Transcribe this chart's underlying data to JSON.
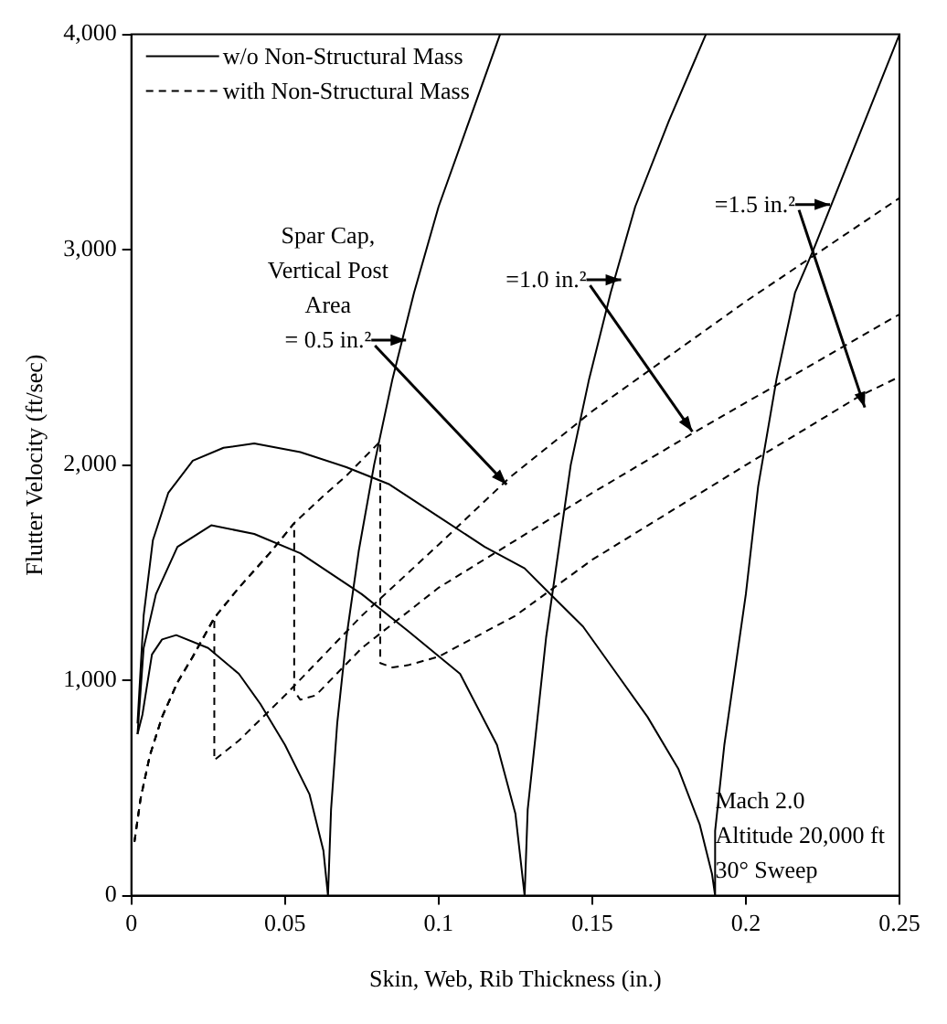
{
  "chart_data": {
    "type": "line",
    "xlabel": "Skin, Web, Rib Thickness (in.)",
    "ylabel": "Flutter Velocity (ft/sec)",
    "xlim": [
      0,
      0.25
    ],
    "xticks": [
      0,
      0.05,
      0.1,
      0.15,
      0.2,
      0.25
    ],
    "ylim": [
      0,
      4000
    ],
    "yticks": [
      0,
      {
        "value": 1000,
        "label": "1,000"
      },
      {
        "value": 2000,
        "label": "2,000"
      },
      {
        "value": 3000,
        "label": "3,000"
      },
      {
        "value": 4000,
        "label": "4,000"
      }
    ],
    "legend": "top left",
    "marker": "none",
    "series": [
      {
        "name": "w/o Non-Structural Mass",
        "color": "#000000",
        "line_style": "solid",
        "x": [
          0.002,
          0.0036,
          0.0067,
          0.01,
          0.0146,
          0.025,
          0.035,
          0.042,
          0.05,
          0.058,
          0.0625,
          0.064,
          0.065,
          0.067,
          0.07,
          0.074,
          0.079,
          0.085,
          0.092,
          0.1,
          0.11,
          0.12
        ],
        "values": [
          750,
          840,
          1120,
          1190,
          1210,
          1150,
          1030,
          890,
          700,
          470,
          210,
          0,
          400,
          800,
          1200,
          1600,
          2000,
          2400,
          2800,
          3200,
          3600,
          4000
        ]
      },
      {
        "color": "#000000",
        "line_style": "solid",
        "x": [
          0.002,
          0.004,
          0.008,
          0.015,
          0.026,
          0.04,
          0.055,
          0.075,
          0.09,
          0.107,
          0.119,
          0.125,
          0.128,
          0.129,
          0.132,
          0.135,
          0.139,
          0.143,
          0.149,
          0.156,
          0.164,
          0.175,
          0.187
        ],
        "values": [
          750,
          1150,
          1400,
          1620,
          1720,
          1680,
          1590,
          1400,
          1230,
          1030,
          700,
          380,
          0,
          400,
          800,
          1200,
          1600,
          2000,
          2400,
          2800,
          3200,
          3600,
          4000
        ]
      },
      {
        "color": "#000000",
        "line_style": "solid",
        "x": [
          0.002,
          0.004,
          0.007,
          0.012,
          0.02,
          0.03,
          0.04,
          0.055,
          0.07,
          0.084,
          0.1,
          0.115,
          0.128,
          0.135,
          0.147,
          0.158,
          0.168,
          0.178,
          0.185,
          0.189,
          0.19,
          0.19,
          0.193,
          0.196,
          0.2,
          0.204,
          0.21,
          0.216,
          0.222,
          0.236,
          0.25
        ],
        "values": [
          800,
          1300,
          1650,
          1870,
          2020,
          2080,
          2100,
          2060,
          1990,
          1910,
          1760,
          1620,
          1520,
          1420,
          1250,
          1030,
          830,
          590,
          330,
          100,
          0,
          300,
          700,
          1000,
          1400,
          1900,
          2400,
          2800,
          3000,
          3500,
          4000
        ]
      },
      {
        "name": "with Non-Structural Mass",
        "color": "#000000",
        "line_style": "dashed",
        "x": [
          0.001,
          0.003,
          0.006,
          0.01,
          0.015,
          0.02,
          0.027,
          0.027,
          0.035,
          0.05,
          0.075,
          0.1,
          0.123,
          0.15,
          0.2,
          0.25
        ],
        "values": [
          250,
          450,
          650,
          830,
          990,
          1110,
          1290,
          630,
          720,
          930,
          1300,
          1630,
          1940,
          2250,
          2760,
          3240
        ]
      },
      {
        "color": "#000000",
        "line_style": "dashed",
        "x": [
          0.001,
          0.003,
          0.006,
          0.01,
          0.015,
          0.02,
          0.027,
          0.035,
          0.045,
          0.053,
          0.053,
          0.055,
          0.06,
          0.075,
          0.1,
          0.125,
          0.15,
          0.183,
          0.25
        ],
        "values": [
          250,
          450,
          650,
          830,
          990,
          1110,
          1290,
          1430,
          1590,
          1730,
          950,
          910,
          930,
          1150,
          1430,
          1650,
          1870,
          2150,
          2700
        ]
      },
      {
        "color": "#000000",
        "line_style": "dashed",
        "x": [
          0.001,
          0.003,
          0.006,
          0.01,
          0.015,
          0.02,
          0.027,
          0.035,
          0.045,
          0.053,
          0.062,
          0.07,
          0.081,
          0.081,
          0.085,
          0.09,
          0.1,
          0.125,
          0.15,
          0.2,
          0.237,
          0.25
        ],
        "values": [
          250,
          450,
          650,
          830,
          990,
          1110,
          1290,
          1430,
          1590,
          1730,
          1850,
          1950,
          2110,
          1080,
          1060,
          1070,
          1110,
          1300,
          1560,
          2000,
          2320,
          2410
        ]
      }
    ],
    "annotations": [
      {
        "text": "Spar Cap,\nVertical Post\nArea\n= 0.5 in.²",
        "x": 0.09,
        "y": 2580
      },
      {
        "text": "=1.0 in.²",
        "x": 0.16,
        "y": 2860
      },
      {
        "text": "=1.5 in.²",
        "x": 0.228,
        "y": 3210
      },
      "Mach 2.0\nAltitude 20,000 ft\n30° Sweep"
    ]
  }
}
